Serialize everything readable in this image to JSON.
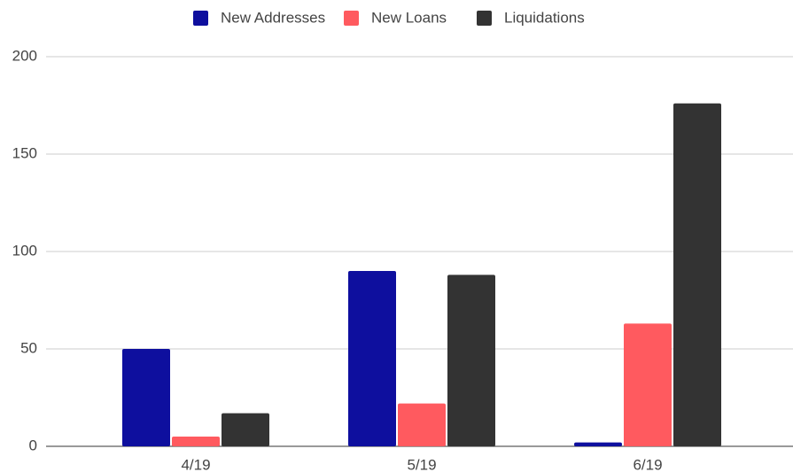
{
  "chart_data": {
    "type": "bar",
    "categories": [
      "4/19",
      "5/19",
      "6/19"
    ],
    "series": [
      {
        "name": "New Addresses",
        "color": "#0e0f9e",
        "values": [
          50,
          90,
          2
        ]
      },
      {
        "name": "New Loans",
        "color": "#ff5a5f",
        "values": [
          5,
          22,
          63
        ]
      },
      {
        "name": "Liquidations",
        "color": "#333333",
        "values": [
          17,
          88,
          176
        ]
      }
    ],
    "ylim": [
      0,
      200
    ],
    "yticks": [
      0,
      50,
      100,
      150,
      200
    ],
    "grid": true,
    "legend": "top"
  }
}
